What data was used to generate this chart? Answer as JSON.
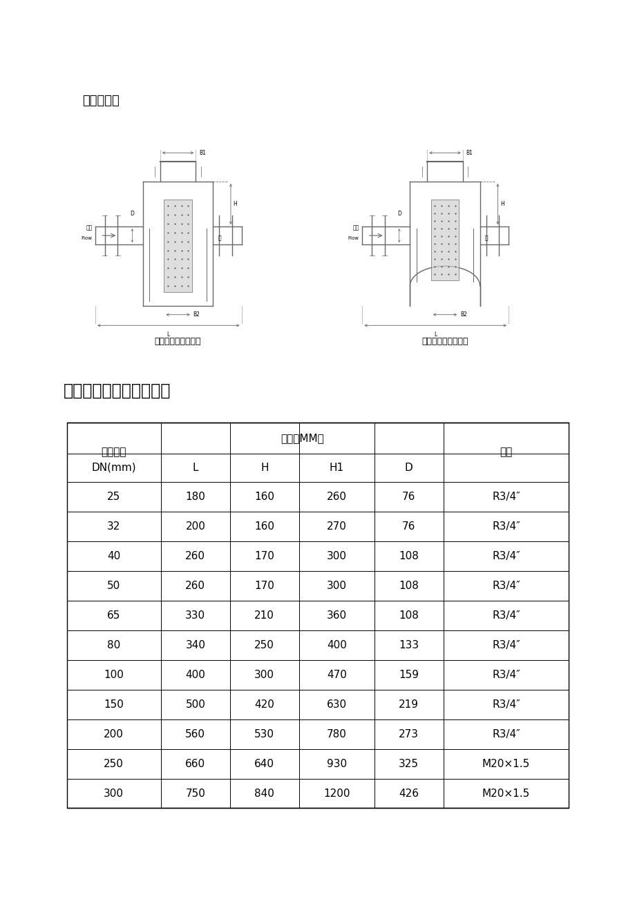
{
  "page_bg": "#ffffff",
  "section4_title": "四、结构图",
  "section5_title": "五、直式过滤器安装尺寸",
  "diagram_caption_left": "直通平底蓝式过滤器",
  "diagram_caption_right": "直通弧底蓝式过滤器",
  "table_header_row1_col0": "公称通径",
  "table_header_row1_span": "尺寸（MM）",
  "table_header_row1_last": "管塞",
  "table_header_row2": [
    "DN(mm)",
    "L",
    "H",
    "H1",
    "D",
    ""
  ],
  "table_data": [
    [
      "25",
      "180",
      "160",
      "260",
      "76",
      "R3/4″"
    ],
    [
      "32",
      "200",
      "160",
      "270",
      "76",
      "R3/4″"
    ],
    [
      "40",
      "260",
      "170",
      "300",
      "108",
      "R3/4″"
    ],
    [
      "50",
      "260",
      "170",
      "300",
      "108",
      "R3/4″"
    ],
    [
      "65",
      "330",
      "210",
      "360",
      "108",
      "R3/4″"
    ],
    [
      "80",
      "340",
      "250",
      "400",
      "133",
      "R3/4″"
    ],
    [
      "100",
      "400",
      "300",
      "470",
      "159",
      "R3/4″"
    ],
    [
      "150",
      "500",
      "420",
      "630",
      "219",
      "R3/4″"
    ],
    [
      "200",
      "560",
      "530",
      "780",
      "273",
      "R3/4″"
    ],
    [
      "250",
      "660",
      "640",
      "930",
      "325",
      "M20×1.5"
    ],
    [
      "300",
      "750",
      "840",
      "1200",
      "426",
      "M20×1.5"
    ]
  ],
  "font_size_title4": 13,
  "font_size_title5": 17,
  "font_size_table": 11,
  "font_size_caption": 9,
  "text_color": "#000000",
  "line_color": "#666666"
}
